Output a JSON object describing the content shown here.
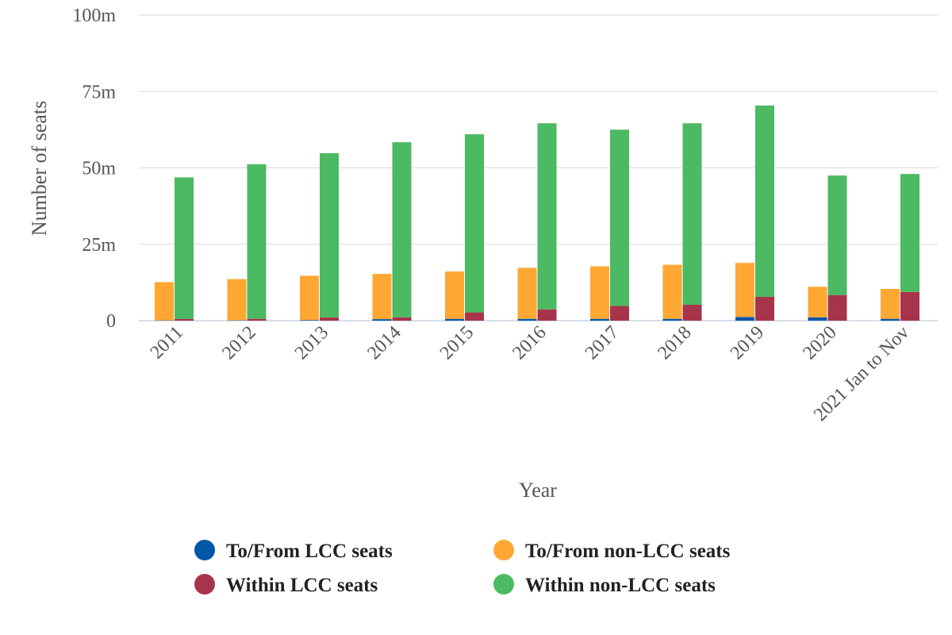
{
  "chart_data": {
    "type": "bar",
    "xlabel": "Year",
    "ylabel": "Number of seats",
    "ylim": [
      0,
      100
    ],
    "yticks": [
      "0",
      "25m",
      "50m",
      "75m",
      "100m"
    ],
    "categories": [
      "2011",
      "2012",
      "2013",
      "2014",
      "2015",
      "2016",
      "2017",
      "2018",
      "2019",
      "2020",
      "2021 Jan to Nov"
    ],
    "grid": true,
    "legend_position": "bottom",
    "stacks": [
      {
        "name": "To/From",
        "series": [
          "To/From LCC seats",
          "To/From non-LCC seats"
        ]
      },
      {
        "name": "Within",
        "series": [
          "Within LCC seats",
          "Within non-LCC seats"
        ]
      }
    ],
    "series": [
      {
        "name": "To/From LCC seats",
        "color": "#0057a8",
        "values": [
          0.1,
          0.1,
          0.2,
          0.5,
          0.6,
          0.6,
          0.6,
          0.6,
          1.2,
          1.1,
          0.6
        ]
      },
      {
        "name": "To/From non-LCC seats",
        "color": "#ffa733",
        "values": [
          12.5,
          13.5,
          14.5,
          14.8,
          15.5,
          16.7,
          17.2,
          17.7,
          17.7,
          10.0,
          9.8
        ]
      },
      {
        "name": "Within LCC seats",
        "color": "#a8344b",
        "values": [
          0.6,
          0.6,
          1.1,
          1.1,
          2.7,
          3.7,
          4.8,
          5.2,
          7.8,
          8.4,
          9.4
        ]
      },
      {
        "name": "Within non-LCC seats",
        "color": "#4cb963",
        "values": [
          46.3,
          50.6,
          53.7,
          57.3,
          58.3,
          60.9,
          57.7,
          59.4,
          62.6,
          39.1,
          38.6
        ]
      }
    ]
  }
}
